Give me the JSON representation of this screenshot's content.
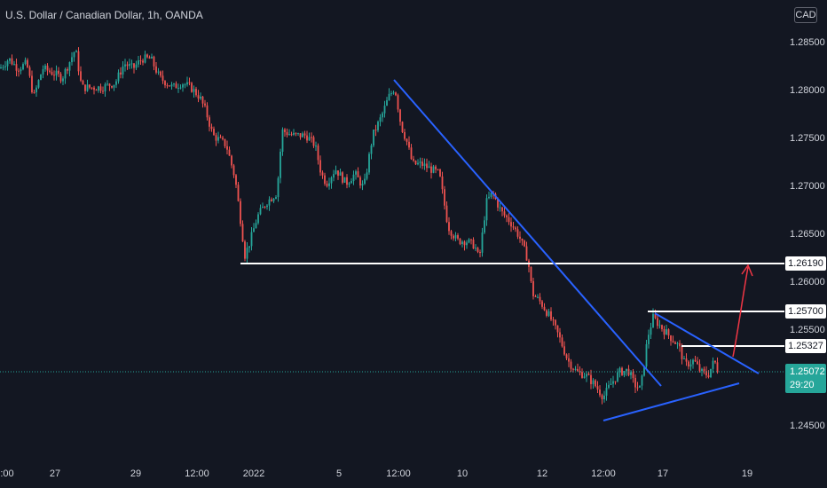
{
  "header": {
    "title": "U.S. Dollar / Canadian Dollar, 1h, OANDA",
    "currency_button": "CAD"
  },
  "price_axis": {
    "ticks": [
      "1.28500",
      "1.28000",
      "1.27500",
      "1.27000",
      "1.26500",
      "1.26000",
      "1.25500",
      "1.24500"
    ]
  },
  "levels": [
    {
      "label": "1.26190",
      "value": 1.2619
    },
    {
      "label": "1.25700",
      "value": 1.257
    },
    {
      "label": "1.25327",
      "value": 1.25327
    }
  ],
  "current": {
    "price": "1.25072",
    "timer": "29:20",
    "value": 1.25072
  },
  "time_axis": {
    "ticks": [
      ":00",
      "27",
      "29",
      "12:00",
      "2022",
      "5",
      "12:00",
      "10",
      "12",
      "12:00",
      "17",
      "19"
    ]
  },
  "colors": {
    "background": "#131722",
    "up": "#26a69a",
    "down": "#ef5350",
    "trendline": "#2962ff",
    "level": "#ffffff",
    "arrow": "#f23645"
  },
  "chart_data": {
    "type": "candlestick",
    "title": "U.S. Dollar / Canadian Dollar, 1h, OANDA",
    "ylim": [
      1.2435,
      1.2885
    ],
    "y_ticks": [
      1.285,
      1.28,
      1.275,
      1.27,
      1.265,
      1.26,
      1.255,
      1.245
    ],
    "x_ticks": [
      ":00",
      "27",
      "29",
      "12:00",
      "2022",
      "5",
      "12:00",
      "10",
      "12",
      "12:00",
      "17",
      "19"
    ],
    "price_path": [
      [
        0,
        1.2825
      ],
      [
        10,
        1.2835
      ],
      [
        20,
        1.2825
      ],
      [
        30,
        1.283
      ],
      [
        38,
        1.2795
      ],
      [
        48,
        1.2825
      ],
      [
        60,
        1.282
      ],
      [
        70,
        1.2815
      ],
      [
        85,
        1.2845
      ],
      [
        92,
        1.2805
      ],
      [
        100,
        1.2805
      ],
      [
        115,
        1.2805
      ],
      [
        130,
        1.281
      ],
      [
        140,
        1.283
      ],
      [
        150,
        1.2825
      ],
      [
        160,
        1.2835
      ],
      [
        170,
        1.2835
      ],
      [
        180,
        1.2815
      ],
      [
        195,
        1.2805
      ],
      [
        205,
        1.281
      ],
      [
        215,
        1.2805
      ],
      [
        225,
        1.2795
      ],
      [
        232,
        1.278
      ],
      [
        240,
        1.2755
      ],
      [
        255,
        1.2745
      ],
      [
        265,
        1.271
      ],
      [
        272,
        1.266
      ],
      [
        276,
        1.263
      ],
      [
        282,
        1.2645
      ],
      [
        290,
        1.267
      ],
      [
        300,
        1.2685
      ],
      [
        312,
        1.2695
      ],
      [
        318,
        1.276
      ],
      [
        330,
        1.2755
      ],
      [
        345,
        1.2755
      ],
      [
        355,
        1.2745
      ],
      [
        362,
        1.2715
      ],
      [
        368,
        1.2705
      ],
      [
        378,
        1.272
      ],
      [
        390,
        1.2705
      ],
      [
        400,
        1.2715
      ],
      [
        410,
        1.27
      ],
      [
        420,
        1.2755
      ],
      [
        430,
        1.2775
      ],
      [
        438,
        1.2795
      ],
      [
        445,
        1.2805
      ],
      [
        452,
        1.2765
      ],
      [
        458,
        1.275
      ],
      [
        465,
        1.2725
      ],
      [
        475,
        1.2725
      ],
      [
        485,
        1.272
      ],
      [
        495,
        1.2715
      ],
      [
        505,
        1.266
      ],
      [
        515,
        1.2645
      ],
      [
        525,
        1.2645
      ],
      [
        535,
        1.264
      ],
      [
        540,
        1.2625
      ],
      [
        548,
        1.2685
      ],
      [
        555,
        1.2695
      ],
      [
        565,
        1.2675
      ],
      [
        575,
        1.2665
      ],
      [
        585,
        1.265
      ],
      [
        595,
        1.2625
      ],
      [
        600,
        1.259
      ],
      [
        610,
        1.258
      ],
      [
        620,
        1.2565
      ],
      [
        630,
        1.2545
      ],
      [
        640,
        1.252
      ],
      [
        650,
        1.2508
      ],
      [
        660,
        1.2505
      ],
      [
        670,
        1.2495
      ],
      [
        680,
        1.2482
      ],
      [
        688,
        1.2495
      ],
      [
        698,
        1.2508
      ],
      [
        708,
        1.251
      ],
      [
        715,
        1.2495
      ],
      [
        722,
        1.249
      ],
      [
        730,
        1.2545
      ],
      [
        736,
        1.2565
      ],
      [
        745,
        1.2555
      ],
      [
        755,
        1.2545
      ],
      [
        765,
        1.2535
      ],
      [
        772,
        1.2515
      ],
      [
        782,
        1.252
      ],
      [
        790,
        1.2508
      ],
      [
        798,
        1.2505
      ],
      [
        805,
        1.252
      ],
      [
        810,
        1.2507
      ]
    ],
    "levels": [
      1.2619,
      1.257,
      1.25327
    ],
    "current_price": 1.25072
  }
}
